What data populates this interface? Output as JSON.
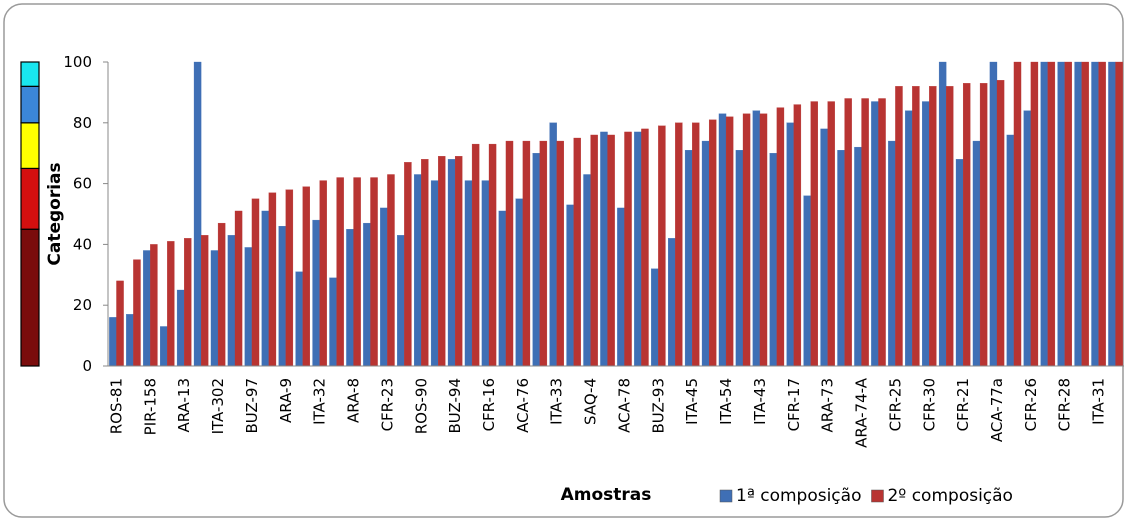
{
  "chart_data": {
    "type": "bar",
    "y_title": "Categorias",
    "x_title": "Amostras",
    "categories": [
      "ROS-81",
      null,
      "PIR-158",
      null,
      "ARA-13",
      null,
      "ITA-302",
      null,
      "BUZ-97",
      null,
      "ARA-9",
      null,
      "ITA-32",
      null,
      "ARA-8",
      null,
      "CFR-23",
      null,
      "ROS-90",
      null,
      "BUZ-94",
      null,
      "CFR-16",
      null,
      "ACA-76",
      null,
      "ITA-33",
      null,
      "SAQ-4",
      null,
      "ACA-78",
      null,
      "BUZ-93",
      null,
      "ITA-45",
      null,
      "ITA-54",
      null,
      "ITA-43",
      null,
      "CFR-17",
      null,
      "ARA-73",
      null,
      "ARA-74-A",
      null,
      "CFR-25",
      null,
      "CFR-30",
      null,
      "CFR-21",
      null,
      "ACA-77a",
      null,
      "CFR-26",
      null,
      "CFR-28",
      null,
      "ITA-31",
      null
    ],
    "series": [
      {
        "name": "1ª composição",
        "color": "#3f6fb5",
        "values": [
          16,
          17,
          38,
          13,
          25,
          100,
          38,
          43,
          39,
          51,
          46,
          31,
          48,
          29,
          45,
          47,
          52,
          43,
          63,
          61,
          68,
          61,
          61,
          51,
          55,
          70,
          80,
          53,
          63,
          77,
          52,
          77,
          32,
          42,
          71,
          74,
          83,
          71,
          84,
          70,
          80,
          56,
          78,
          71,
          72,
          87,
          74,
          84,
          87,
          100,
          68,
          74,
          100,
          76,
          84,
          100,
          100,
          100,
          100,
          100
        ]
      },
      {
        "name": "2º composição",
        "color": "#b83432",
        "values": [
          28,
          35,
          40,
          41,
          42,
          43,
          47,
          51,
          55,
          57,
          58,
          59,
          61,
          62,
          62,
          62,
          63,
          67,
          68,
          69,
          69,
          73,
          73,
          74,
          74,
          74,
          74,
          75,
          76,
          76,
          77,
          78,
          79,
          80,
          80,
          81,
          82,
          83,
          83,
          85,
          86,
          87,
          87,
          88,
          88,
          88,
          92,
          92,
          92,
          92,
          93,
          93,
          94,
          100,
          100,
          100,
          100,
          100,
          100,
          100
        ]
      }
    ],
    "ylim": [
      0,
      100
    ],
    "yticks": [
      0,
      20,
      40,
      60,
      80,
      100
    ],
    "category_bands": [
      {
        "from": 0,
        "to": 45,
        "color": "#7a0c0c"
      },
      {
        "from": 45,
        "to": 65,
        "color": "#d40f0f"
      },
      {
        "from": 65,
        "to": 80,
        "color": "#ffff00"
      },
      {
        "from": 80,
        "to": 92,
        "color": "#3b86d8"
      },
      {
        "from": 92,
        "to": 100,
        "color": "#19e6f0"
      }
    ]
  }
}
